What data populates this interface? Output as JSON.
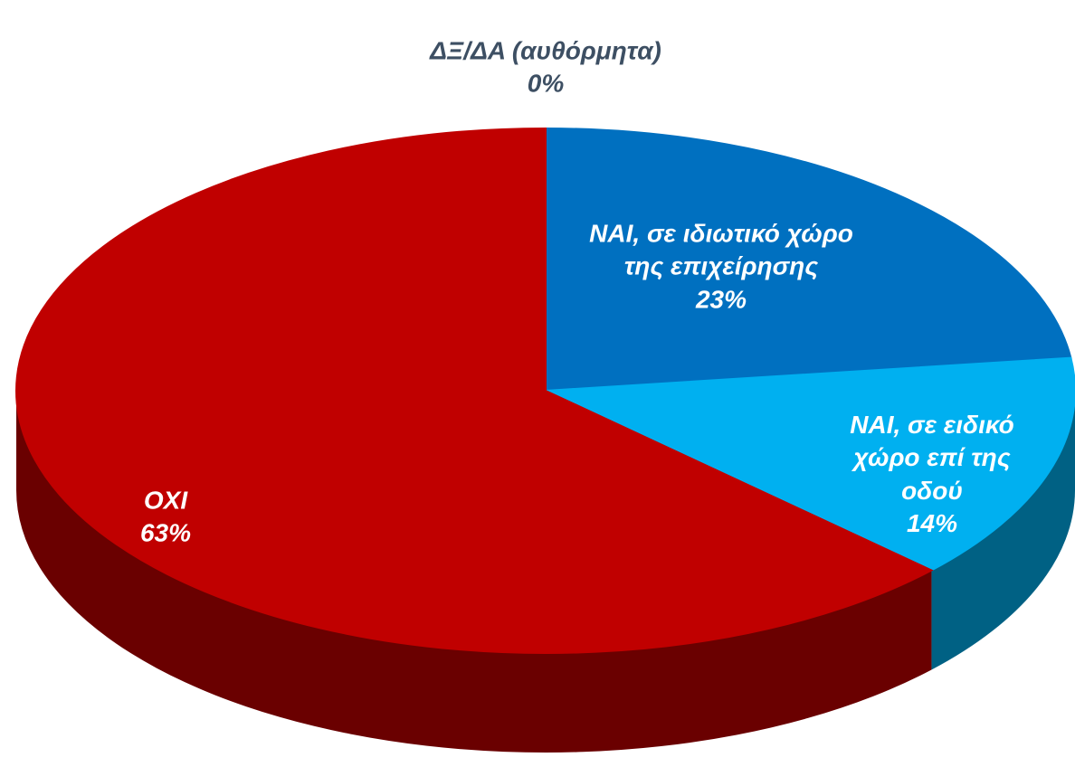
{
  "chart_data": {
    "type": "pie3d",
    "categories": [
      "ΔΞ/ΔΑ (αυθόρμητα)",
      "ΝΑΙ, σε ιδιωτικό χώρο της επιχείρησης",
      "ΝΑΙ, σε ειδικό χώρο επί της οδού",
      "ΟΧΙ"
    ],
    "values": [
      0,
      23,
      14,
      63
    ],
    "value_labels": [
      "0%",
      "23%",
      "14%",
      "63%"
    ],
    "colors": [
      "#7f7f7f",
      "#0070c0",
      "#00b0f0",
      "#c00000"
    ]
  }
}
